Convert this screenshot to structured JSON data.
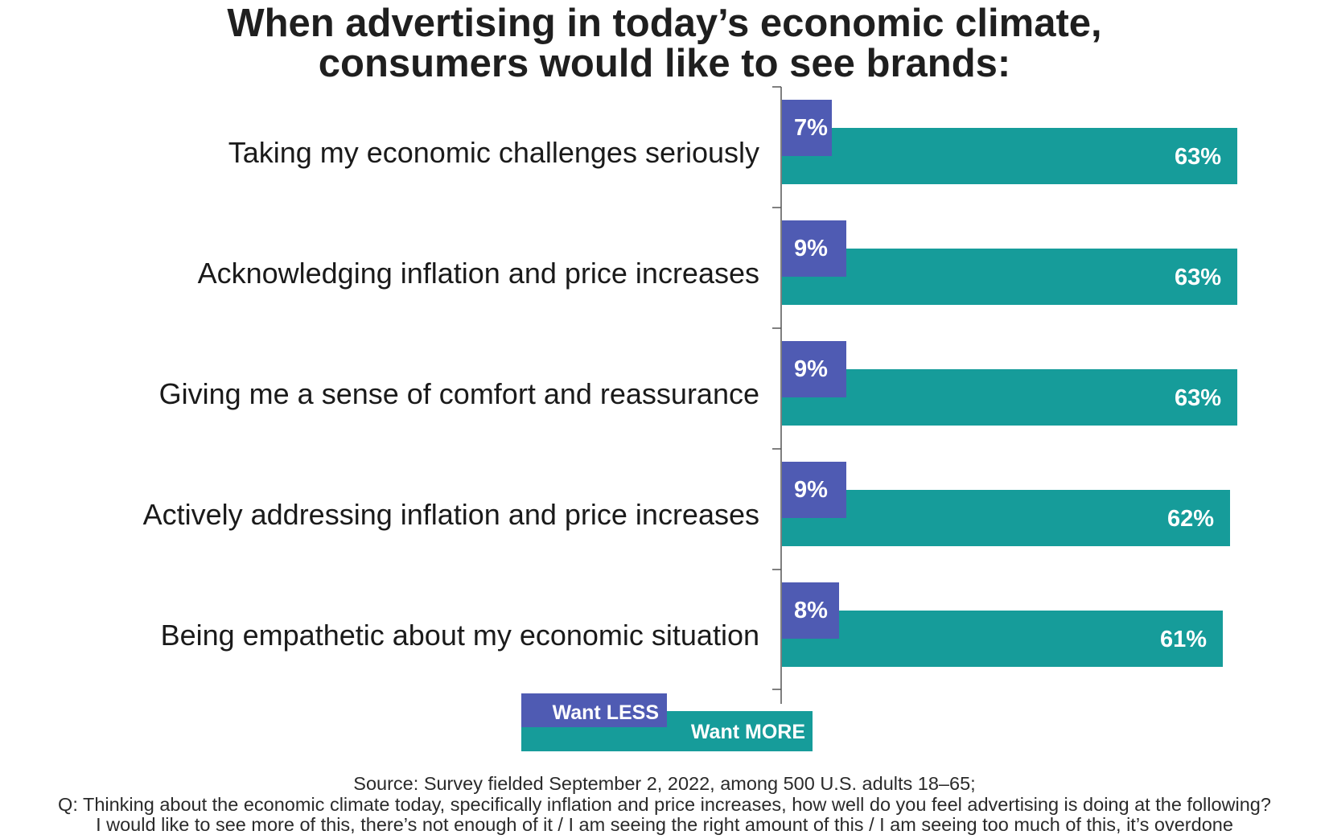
{
  "title": {
    "line1": "When advertising in today’s economic climate,",
    "line2": "consumers would like to see brands:"
  },
  "colors": {
    "less": "#4f5bb3",
    "more": "#169c9a",
    "axis": "#555555",
    "label_text": "#ffffff",
    "category_text": "#1a1a1a"
  },
  "chart_data": {
    "type": "bar",
    "orientation": "horizontal",
    "categories": [
      "Taking my economic challenges seriously",
      "Acknowledging inflation and price increases",
      "Giving me a sense of comfort and reassurance",
      "Actively addressing inflation and price increases",
      "Being empathetic about my economic situation"
    ],
    "series": [
      {
        "name": "Want LESS",
        "values": [
          7,
          9,
          9,
          9,
          8
        ],
        "labels": [
          "7%",
          "9%",
          "9%",
          "9%",
          "8%"
        ],
        "color": "#4f5bb3"
      },
      {
        "name": "Want MORE",
        "values": [
          63,
          63,
          63,
          62,
          61
        ],
        "labels": [
          "63%",
          "63%",
          "63%",
          "62%",
          "61%"
        ],
        "color": "#169c9a"
      }
    ],
    "unit": "%",
    "xlim": [
      0,
      65
    ],
    "legend": {
      "position": "bottom",
      "entries": [
        "Want LESS",
        "Want MORE"
      ]
    },
    "grid": false
  },
  "footer": {
    "line1": "Source: Survey fielded September 2, 2022, among 500 U.S. adults 18–65;",
    "line2": "Q: Thinking about the economic climate today, specifically inflation and price increases, how well do you feel advertising is doing at the following?",
    "line3": "I would like to see more of this, there’s not enough of it / I am seeing the right amount of this / I am seeing too much of this, it’s overdone"
  }
}
